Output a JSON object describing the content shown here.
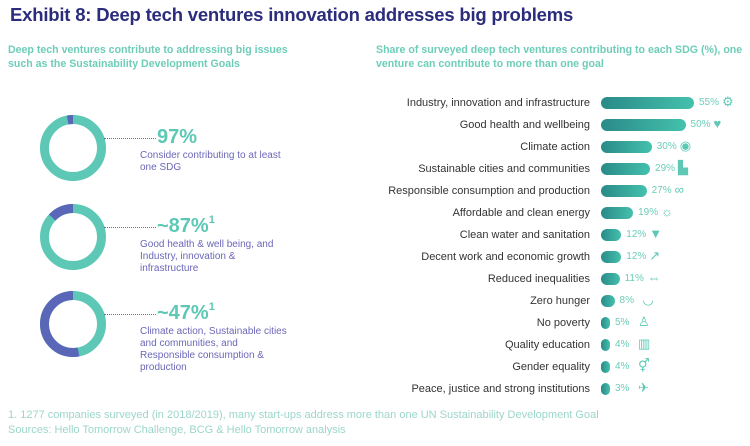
{
  "title": "Exhibit 8: Deep tech ventures innovation addresses big problems",
  "left_subtitle": "Deep tech ventures contribute to addressing big issues such as the Sustainability Development Goals",
  "right_subtitle": "Share of surveyed deep tech ventures contributing to each SDG (%), one venture can contribute to more than one goal",
  "colors": {
    "teal": "#5cc8b5",
    "blue": "#5a67b8",
    "navy": "#2b2d7c",
    "purple_text": "#6b67b8"
  },
  "donuts": [
    {
      "value": 97,
      "label": "97%",
      "sup": "1",
      "desc": "Consider contributing to at least one SDG"
    },
    {
      "value": 87,
      "label": "~87%",
      "sup": "1",
      "desc": "Good health & well being, and Industry, innovation & infrastructure"
    },
    {
      "value": 47,
      "label": "~47%",
      "sup": "1",
      "desc": "Climate action, Sustainable cities and communities, and Responsible consumption & production"
    }
  ],
  "chart_data": {
    "type": "bar",
    "orientation": "horizontal",
    "title": "Share of surveyed deep tech ventures contributing to each SDG (%), one venture can contribute to more than one goal",
    "categories": [
      "Industry, innovation and infrastructure",
      "Good health and wellbeing",
      "Climate action",
      "Sustainable cities and communities",
      "Responsible consumption and production",
      "Affordable and clean energy",
      "Clean water and sanitation",
      "Decent work and economic growth",
      "Reduced inequalities",
      "Zero hunger",
      "No poverty",
      "Quality education",
      "Gender equality",
      "Peace, justice and strong institutions"
    ],
    "values": [
      55,
      50,
      30,
      29,
      27,
      19,
      12,
      12,
      11,
      8,
      5,
      4,
      4,
      3
    ],
    "value_labels": [
      "55%",
      "50%",
      "30%",
      "29%",
      "27%",
      "19%",
      "12%",
      "12%",
      "11%",
      "8%",
      "5%",
      "4%",
      "4%",
      "3%"
    ],
    "icons": [
      "industry-icon",
      "heartbeat-icon",
      "eye-icon",
      "city-icon",
      "infinity-icon",
      "sun-icon",
      "water-tap-icon",
      "growth-chart-icon",
      "inequality-arrows-icon",
      "food-bowl-icon",
      "people-icon",
      "book-icon",
      "gender-icon",
      "dove-icon"
    ],
    "xlim": [
      0,
      55
    ]
  },
  "footnotes": [
    "1. 1277 companies surveyed (in 2018/2019), many start-ups address more than one UN Sustainability Development Goal",
    "Sources: Hello Tomorrow Challenge, BCG & Hello Tomorrow analysis"
  ]
}
